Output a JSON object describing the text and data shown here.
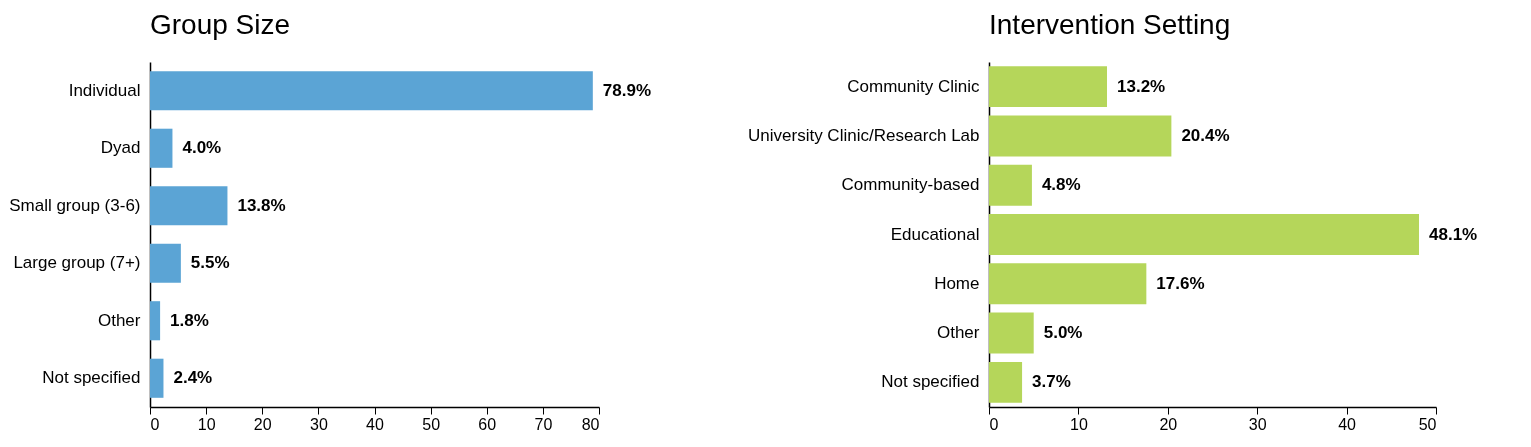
{
  "chart_data": [
    {
      "type": "bar",
      "orientation": "horizontal",
      "title": "Group Size",
      "categories": [
        "Individual",
        "Dyad",
        "Small group (3-6)",
        "Large group (7+)",
        "Other",
        "Not specified"
      ],
      "series": [
        {
          "color": "#5ba4d5",
          "values": [
            78.9,
            4.0,
            13.8,
            5.5,
            1.8,
            2.4
          ],
          "value_labels": [
            "78.9%",
            "4.0%",
            "13.8%",
            "5.5%",
            "1.8%",
            "2.4%"
          ]
        }
      ],
      "xlim": [
        0,
        80
      ],
      "xticks": [
        0,
        10,
        20,
        30,
        40,
        50,
        60,
        70,
        80
      ]
    },
    {
      "type": "bar",
      "orientation": "horizontal",
      "title": "Intervention Setting",
      "categories": [
        "Community Clinic",
        "University Clinic/Research Lab",
        "Community-based",
        "Educational",
        "Home",
        "Other",
        "Not specified"
      ],
      "series": [
        {
          "color": "#b5d65a",
          "values": [
            13.2,
            20.4,
            4.8,
            48.1,
            17.6,
            5.0,
            3.7
          ],
          "value_labels": [
            "13.2%",
            "20.4%",
            "4.8%",
            "48.1%",
            "17.6%",
            "5.0%",
            "3.7%"
          ]
        }
      ],
      "xlim": [
        0,
        50
      ],
      "xticks": [
        0,
        10,
        20,
        30,
        40,
        50
      ]
    }
  ]
}
